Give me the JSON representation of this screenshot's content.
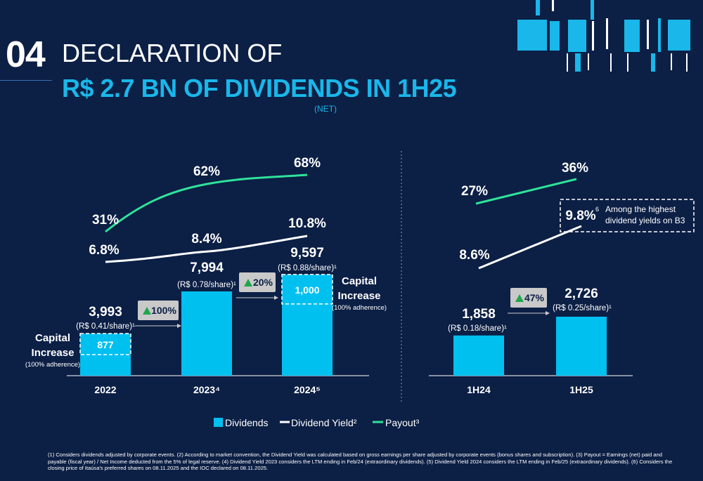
{
  "title": {
    "number": "04",
    "line1": "DECLARATION OF",
    "line2": "R$ 2.7 BN OF DIVIDENDS IN 1H25",
    "subtitle": "(NET)"
  },
  "colors": {
    "background": "#0c1f45",
    "dividends": "#00c0f0",
    "dividend_yield": "#ffffff",
    "payout": "#2ee39a",
    "growth_badge": "#c9c9c9",
    "growth_arrow": "#1fa64a"
  },
  "chart_data": [
    {
      "type": "bar",
      "name_key": "annual",
      "categories": [
        "2022",
        "2023",
        "2024"
      ],
      "category_labels": [
        "2022",
        "2023⁴",
        "2024⁵"
      ],
      "series": [
        {
          "name": "Dividends",
          "values": [
            3993,
            7994,
            9597
          ],
          "value_labels": [
            "3,993",
            "7,994",
            "9,597"
          ]
        },
        {
          "name": "Dividend Yield²",
          "values": [
            6.8,
            8.4,
            10.8
          ],
          "value_labels": [
            "6.8%",
            "8.4%",
            "10.8%"
          ]
        },
        {
          "name": "Payout³",
          "values": [
            31,
            62,
            68
          ],
          "value_labels": [
            "31%",
            "62%",
            "68%"
          ]
        }
      ],
      "per_share": [
        "(R$ 0.41/share)¹",
        "(R$ 0.78/share)¹",
        "(R$ 0.88/share)¹"
      ],
      "capital_increase": [
        {
          "category": "2022",
          "value": 877,
          "label": "877",
          "title_line1": "Capital",
          "title_line2": "Increase",
          "note": "(100% adherence)"
        },
        {
          "category": "2024",
          "value": 1000,
          "label": "1,000",
          "title_line1": "Capital",
          "title_line2": "Increase",
          "note": "(100% adherence)"
        }
      ],
      "growth": [
        "100%",
        "20%"
      ]
    },
    {
      "type": "bar",
      "name_key": "semiannual",
      "categories": [
        "1H24",
        "1H25"
      ],
      "category_labels": [
        "1H24",
        "1H25"
      ],
      "series": [
        {
          "name": "Dividends",
          "values": [
            1858,
            2726
          ],
          "value_labels": [
            "1,858",
            "2,726"
          ]
        },
        {
          "name": "Dividend Yield²",
          "values": [
            8.6,
            9.8
          ],
          "value_labels": [
            "8.6%",
            "9.8%"
          ]
        },
        {
          "name": "Payout³",
          "values": [
            27,
            36
          ],
          "value_labels": [
            "27%",
            "36%"
          ]
        }
      ],
      "per_share": [
        "(R$ 0.18/share)¹",
        "(R$ 0.25/share)¹"
      ],
      "growth": [
        "47%"
      ],
      "callout": {
        "superscript": "6",
        "line1": "Among the highest",
        "line2": "dividend yields on B3"
      }
    }
  ],
  "legend": [
    {
      "label": "Dividends"
    },
    {
      "label": "Dividend Yield²"
    },
    {
      "label": "Payout³"
    }
  ],
  "footnote": "(1) Considers dividends adjusted by corporate events. (2) According to market convention, the Dividend Yield was calculated based on gross earnings per share adjusted by corporate events (bonus shares and subscription). (3) Payout = Earnings (net) paid and payable (fiscal year) / Net Income deducted from the 5% of legal reserve. (4) Dividend Yield 2023 considers the LTM ending in Feb/24 (extraordinary dividends). (5) Dividend Yield 2024 considers the LTM ending in Feb/25 (extraordinary dividends). (6) Considers the closing price of Itaúsa's preferred shares on 08.11.2025 and the IOC declared on 08.11.2025."
}
